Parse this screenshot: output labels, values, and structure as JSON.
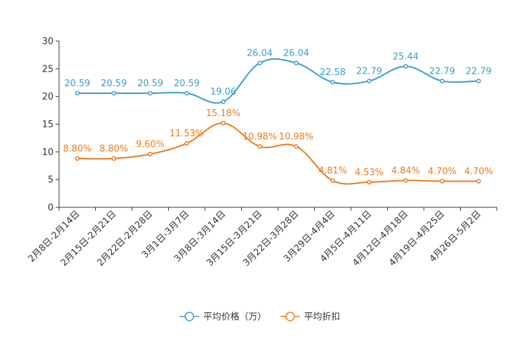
{
  "chart_data": {
    "type": "line",
    "categories": [
      "2月8日-2月14日",
      "2月15日-2月21日",
      "2月22日-2月28日",
      "3月1日-3月7日",
      "3月8日-3月14日",
      "3月15日-3月21日",
      "3月22日-3月28日",
      "3月29日-4月4日",
      "4月5日-4月11日",
      "4月12日-4月18日",
      "4月19日-4月25日",
      "4月26日-5月2日"
    ],
    "ylim": [
      0,
      30
    ],
    "yticks": [
      0,
      5,
      10,
      15,
      20,
      25,
      30
    ],
    "series": [
      {
        "name": "平均价格（万）",
        "color": "#3a9ccf",
        "values": [
          20.59,
          20.59,
          20.59,
          20.59,
          19.06,
          26.04,
          26.04,
          22.58,
          22.79,
          25.44,
          22.79,
          22.79
        ],
        "labels": [
          "20.59",
          "20.59",
          "20.59",
          "20.59",
          "19.06",
          "26.04",
          "26.04",
          "22.58",
          "22.79",
          "25.44",
          "22.79",
          "22.79"
        ]
      },
      {
        "name": "平均折扣",
        "color": "#f07a1a",
        "values": [
          8.8,
          8.8,
          9.6,
          11.53,
          15.18,
          10.98,
          10.98,
          4.81,
          4.53,
          4.84,
          4.7,
          4.7
        ],
        "labels": [
          "8.80%",
          "8.80%",
          "9.60%",
          "11.53%",
          "15.18%",
          "10.98%",
          "10.98%",
          "4.81%",
          "4.53%",
          "4.84%",
          "4.70%",
          "4.70%"
        ]
      }
    ],
    "legend_position": "bottom-center"
  }
}
